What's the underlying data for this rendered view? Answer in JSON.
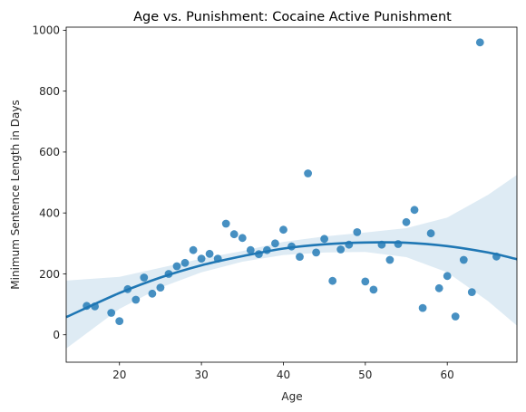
{
  "chart_data": {
    "type": "scatter",
    "title": "Age vs. Punishment: Cocaine Active Punishment",
    "xlabel": "Age",
    "ylabel": "Minimum Sentence Length in Days",
    "xlim": [
      13.5,
      68.5
    ],
    "ylim": [
      -90,
      1010
    ],
    "xticks": [
      20,
      30,
      40,
      50,
      60
    ],
    "yticks": [
      0,
      200,
      400,
      600,
      800,
      1000
    ],
    "grid": false,
    "legend": "none",
    "colors": {
      "points": "#1f77b4",
      "fit_line": "#1f77b4",
      "ci_band": "#1f77b4"
    },
    "points": [
      {
        "x": 16,
        "y": 95
      },
      {
        "x": 17,
        "y": 93
      },
      {
        "x": 19,
        "y": 72
      },
      {
        "x": 20,
        "y": 45
      },
      {
        "x": 21,
        "y": 150
      },
      {
        "x": 22,
        "y": 115
      },
      {
        "x": 23,
        "y": 188
      },
      {
        "x": 24,
        "y": 135
      },
      {
        "x": 25,
        "y": 155
      },
      {
        "x": 26,
        "y": 200
      },
      {
        "x": 27,
        "y": 225
      },
      {
        "x": 28,
        "y": 236
      },
      {
        "x": 29,
        "y": 278
      },
      {
        "x": 30,
        "y": 250
      },
      {
        "x": 31,
        "y": 266
      },
      {
        "x": 32,
        "y": 250
      },
      {
        "x": 33,
        "y": 365
      },
      {
        "x": 34,
        "y": 330
      },
      {
        "x": 35,
        "y": 318
      },
      {
        "x": 36,
        "y": 278
      },
      {
        "x": 37,
        "y": 265
      },
      {
        "x": 38,
        "y": 278
      },
      {
        "x": 39,
        "y": 300
      },
      {
        "x": 40,
        "y": 345
      },
      {
        "x": 41,
        "y": 290
      },
      {
        "x": 42,
        "y": 256
      },
      {
        "x": 43,
        "y": 530
      },
      {
        "x": 44,
        "y": 270
      },
      {
        "x": 45,
        "y": 315
      },
      {
        "x": 46,
        "y": 177
      },
      {
        "x": 47,
        "y": 280
      },
      {
        "x": 48,
        "y": 296
      },
      {
        "x": 49,
        "y": 337
      },
      {
        "x": 50,
        "y": 175
      },
      {
        "x": 51,
        "y": 148
      },
      {
        "x": 52,
        "y": 296
      },
      {
        "x": 53,
        "y": 246
      },
      {
        "x": 54,
        "y": 298
      },
      {
        "x": 55,
        "y": 370
      },
      {
        "x": 56,
        "y": 410
      },
      {
        "x": 57,
        "y": 88
      },
      {
        "x": 58,
        "y": 333
      },
      {
        "x": 59,
        "y": 153
      },
      {
        "x": 60,
        "y": 193
      },
      {
        "x": 61,
        "y": 60
      },
      {
        "x": 62,
        "y": 246
      },
      {
        "x": 63,
        "y": 140
      },
      {
        "x": 64,
        "y": 960
      },
      {
        "x": 66,
        "y": 257
      }
    ],
    "fit": {
      "x": [
        13.5,
        20,
        25,
        30,
        35,
        40,
        45,
        50,
        55,
        60,
        65,
        68.5
      ],
      "y": [
        58,
        137,
        188,
        228,
        258,
        283,
        297,
        303,
        302,
        291,
        270,
        248
      ],
      "ci_lower": [
        -45,
        85,
        155,
        205,
        240,
        262,
        270,
        272,
        255,
        205,
        110,
        30
      ],
      "ci_upper": [
        178,
        190,
        220,
        250,
        275,
        305,
        323,
        336,
        350,
        385,
        460,
        525
      ]
    }
  }
}
